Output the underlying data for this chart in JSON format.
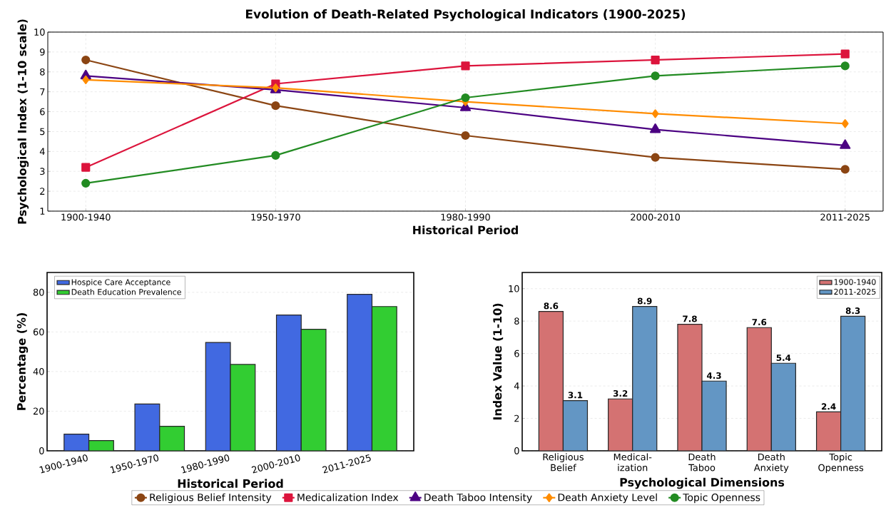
{
  "chart_data": [
    {
      "type": "line",
      "title": "Evolution of Death-Related Psychological Indicators (1900-2025)",
      "xlabel": "Historical Period",
      "ylabel": "Psychological Index (1-10 scale)",
      "categories": [
        "1900-1940",
        "1950-1970",
        "1980-1990",
        "2000-2010",
        "2011-2025"
      ],
      "ylim": [
        1,
        10
      ],
      "yticks": [
        1,
        2,
        3,
        4,
        5,
        6,
        7,
        8,
        9,
        10
      ],
      "grid": true,
      "legend": "bottom",
      "line_style": "solid",
      "series": [
        {
          "name": "Religious Belief Intensity",
          "color": "#8b4513",
          "marker": "circle",
          "values": [
            8.6,
            6.3,
            4.8,
            3.7,
            3.1
          ]
        },
        {
          "name": "Medicalization Index",
          "color": "#dc143c",
          "marker": "square",
          "values": [
            3.2,
            7.4,
            8.3,
            8.6,
            8.9
          ]
        },
        {
          "name": "Death Taboo Intensity",
          "color": "#4b0082",
          "marker": "triangle",
          "values": [
            7.8,
            7.1,
            6.2,
            5.1,
            4.3
          ]
        },
        {
          "name": "Death Anxiety Level",
          "color": "#ff8c00",
          "marker": "diamond",
          "values": [
            7.6,
            7.2,
            6.5,
            5.9,
            5.4
          ]
        },
        {
          "name": "Topic Openness",
          "color": "#228b22",
          "marker": "circle",
          "values": [
            2.4,
            3.8,
            6.7,
            7.8,
            8.3
          ]
        }
      ]
    },
    {
      "type": "bar",
      "xlabel": "Historical Period",
      "ylabel": "Percentage (%)",
      "categories": [
        "1900-1940",
        "1950-1970",
        "1980-1990",
        "2000-2010",
        "2011-2025"
      ],
      "ylim": [
        0,
        90
      ],
      "yticks": [
        0,
        20,
        40,
        60,
        80
      ],
      "grid": "y",
      "legend": "top left",
      "series": [
        {
          "name": "Hospice Care Acceptance",
          "color": "#4169e1",
          "values": [
            8.4,
            23.6,
            54.7,
            68.5,
            79
          ]
        },
        {
          "name": "Death Education Prevalence",
          "color": "#32cd32",
          "values": [
            5.2,
            12.4,
            43.6,
            61.3,
            72.8
          ]
        }
      ]
    },
    {
      "type": "bar",
      "xlabel": "Psychological Dimensions",
      "ylabel": "Index Value (1-10)",
      "categories": [
        "Religious Belief",
        "Medical-ization",
        "Death Taboo",
        "Death Anxiety",
        "Topic Openness"
      ],
      "ylim": [
        0,
        11
      ],
      "yticks": [
        0,
        2,
        4,
        6,
        8,
        10
      ],
      "grid": "y",
      "legend": "top right",
      "data_labels": true,
      "series": [
        {
          "name": "1900-1940",
          "color": "#d47272",
          "values": [
            8.6,
            3.2,
            7.8,
            7.6,
            2.4
          ]
        },
        {
          "name": "2011-2025",
          "color": "#6396c4",
          "values": [
            3.1,
            8.9,
            4.3,
            5.4,
            8.3
          ]
        }
      ]
    }
  ]
}
